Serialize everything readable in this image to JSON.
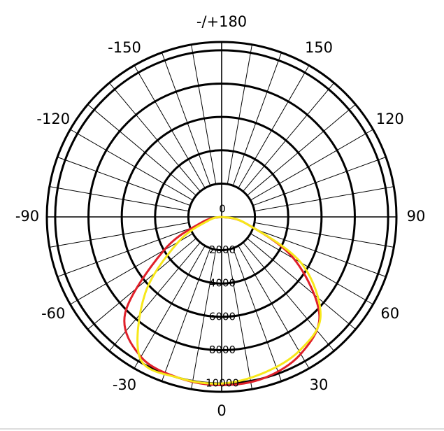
{
  "chart_data": {
    "type": "polar",
    "theta": [
      -90,
      -75,
      -60,
      -45,
      -30,
      -15,
      0,
      15,
      30,
      45,
      60,
      75,
      90
    ],
    "series": [
      {
        "color": "#e0202a",
        "values": [
          0,
          1200,
          4000,
          8200,
          9700,
          10000,
          10100,
          10000,
          9500,
          8300,
          5000,
          1500,
          0
        ]
      },
      {
        "color": "#f7e81a",
        "values": [
          0,
          800,
          3000,
          6500,
          9800,
          10000,
          10000,
          9700,
          9300,
          8400,
          5500,
          1500,
          0
        ]
      }
    ],
    "rlim": [
      0,
      10500
    ],
    "rticks": [
      0,
      2000,
      4000,
      6000,
      8000,
      10000
    ],
    "thetaticks": [
      {
        "value": 180,
        "label": "-/+180"
      },
      150,
      120,
      90,
      60,
      30,
      0,
      -30,
      -60,
      -90,
      -120,
      -150
    ]
  }
}
